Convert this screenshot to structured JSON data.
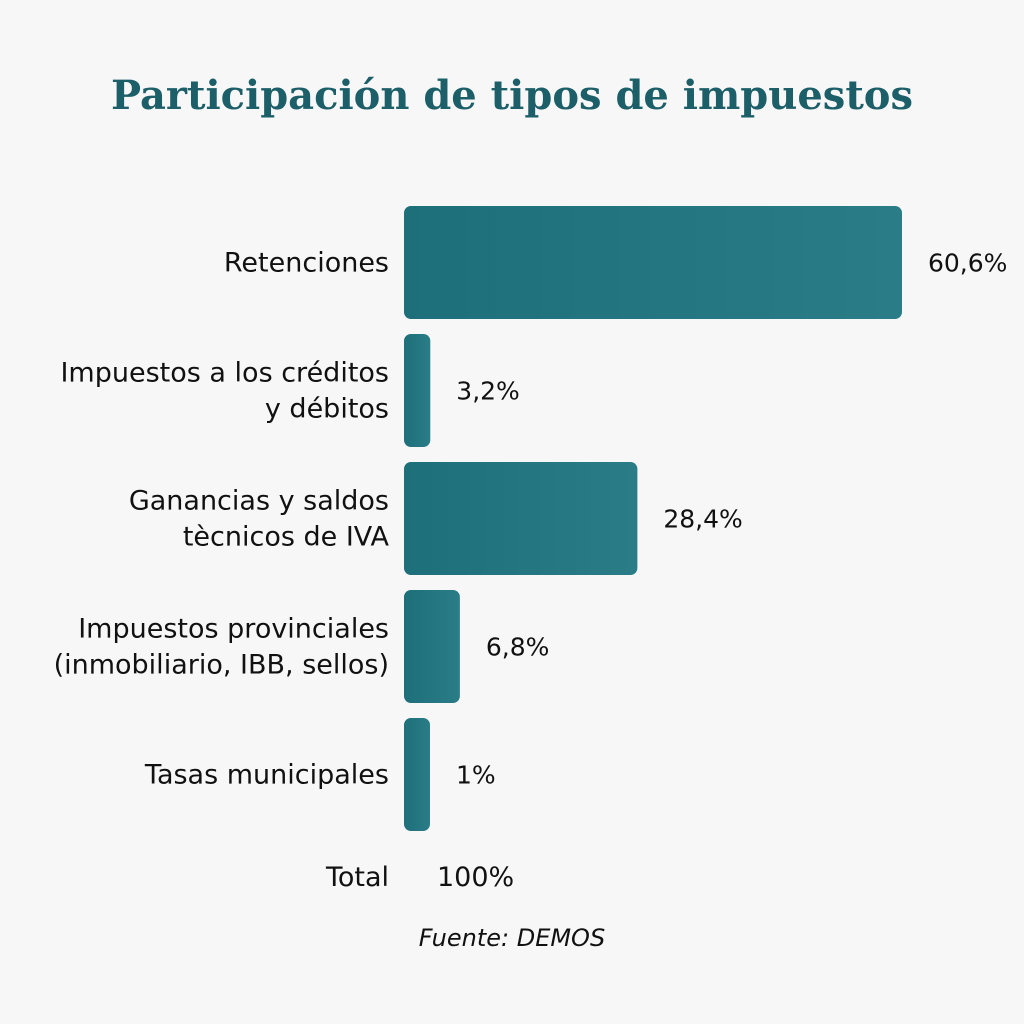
{
  "chart_data": {
    "type": "bar",
    "orientation": "horizontal",
    "title": "Participación de tipos de impuestos",
    "categories": [
      [
        "Retenciones"
      ],
      [
        "Impuestos a los créditos",
        "y débitos"
      ],
      [
        "Ganancias y saldos",
        "tècnicos de IVA"
      ],
      [
        "Impuestos provinciales",
        "(inmobiliario, IBB, sellos)"
      ],
      [
        "Tasas municipales"
      ]
    ],
    "values": [
      60.6,
      3.2,
      28.4,
      6.8,
      1
    ],
    "value_labels": [
      "60,6%",
      "3,2%",
      "28,4%",
      "6,8%",
      "1%"
    ],
    "unit": "%",
    "total_label": "Total",
    "total_value": "100%",
    "source": "Fuente: DEMOS",
    "bar_color": "#1f737d",
    "grid": false,
    "legend": "none"
  }
}
